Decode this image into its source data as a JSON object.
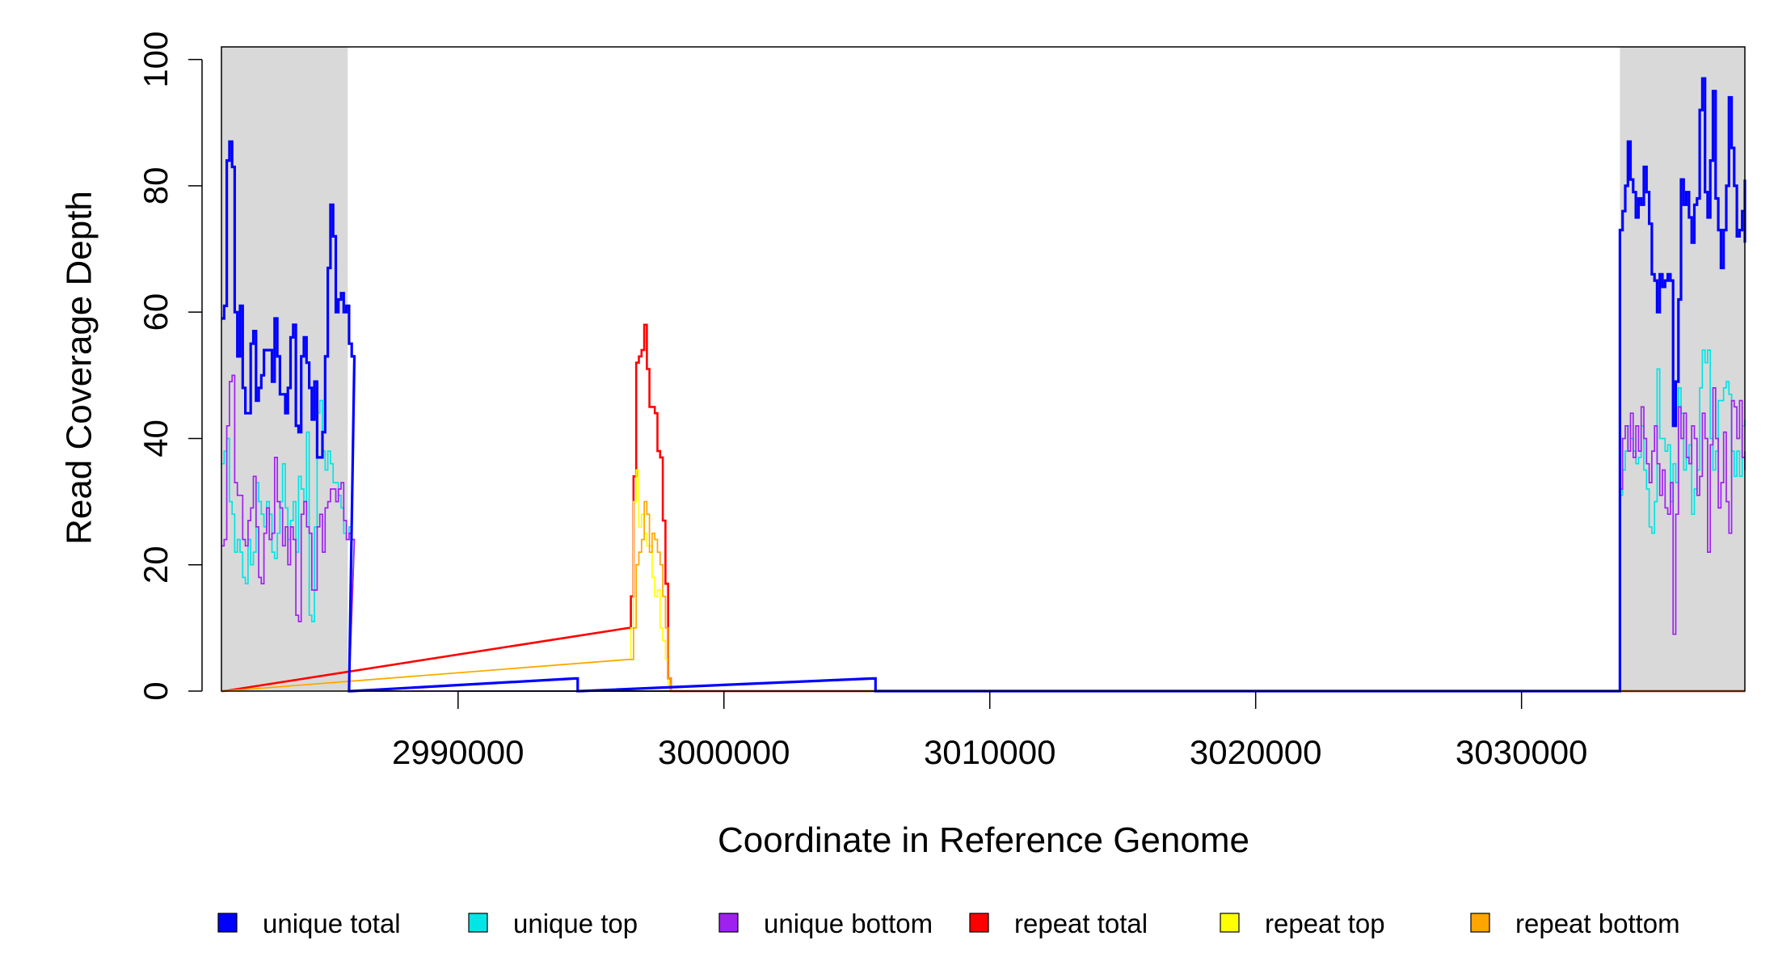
{
  "chart_data": {
    "type": "line",
    "xlabel": "Coordinate in Reference Genome",
    "ylabel": "Read Coverage Depth",
    "xlim": [
      2981100,
      3038400
    ],
    "ylim": [
      0,
      102
    ],
    "x_ticks": [
      2990000,
      3000000,
      3010000,
      3020000,
      3030000
    ],
    "x_tick_labels": [
      "2990000",
      "3000000",
      "3010000",
      "3020000",
      "3030000"
    ],
    "y_ticks": [
      0,
      20,
      40,
      60,
      80,
      100
    ],
    "y_tick_labels": [
      "0",
      "20",
      "40",
      "60",
      "80",
      "100"
    ],
    "grid": false,
    "legend_position": "bottom",
    "shaded_regions": [
      {
        "x_start": 2981100,
        "x_end": 2985850,
        "color": "#d9d9d9"
      },
      {
        "x_start": 3033700,
        "x_end": 3038400,
        "color": "#d9d9d9"
      }
    ],
    "series": [
      {
        "name": "unique total",
        "color": "#0000ff",
        "step": 100,
        "segments": [
          {
            "x0": 2981100,
            "values": [
              59,
              61,
              84,
              87,
              83,
              60,
              53,
              61,
              48,
              44,
              44,
              55,
              57,
              46,
              48,
              50,
              54,
              54,
              54,
              49,
              59,
              53,
              47,
              47,
              44,
              48,
              56,
              58,
              42,
              41,
              53,
              56,
              52,
              48,
              43,
              49,
              37,
              37,
              41,
              53,
              67,
              77,
              72,
              60,
              62,
              63,
              60,
              61,
              55,
              53
            ]
          },
          {
            "x0": 2985900,
            "values": [
              0
            ]
          },
          {
            "x0": 2994400,
            "values": [
              2
            ]
          },
          {
            "x0": 2994500,
            "values": [
              0
            ]
          },
          {
            "x0": 3005600,
            "values": [
              2
            ]
          },
          {
            "x0": 3005700,
            "values": [
              0
            ]
          },
          {
            "x0": 3033500,
            "values": [
              0,
              0,
              73,
              76,
              80,
              87,
              81,
              79,
              75,
              78,
              77,
              83,
              79,
              74,
              66,
              65,
              60,
              66,
              64,
              65,
              66,
              65,
              42,
              49,
              62,
              81,
              77,
              79,
              75,
              71,
              77,
              78,
              92,
              97,
              79,
              75,
              84,
              95,
              78,
              73,
              67,
              73,
              80,
              94,
              86,
              80,
              72,
              73,
              76,
              81,
              71
            ]
          }
        ]
      },
      {
        "name": "unique top",
        "color": "#00e5e5",
        "step": 100,
        "segments": [
          {
            "x0": 2981100,
            "values": [
              36,
              38,
              40,
              30,
              28,
              22,
              24,
              22,
              18,
              17,
              24,
              20,
              22,
              33,
              30,
              28,
              26,
              30,
              28,
              22,
              21,
              25,
              30,
              36,
              29,
              24,
              27,
              30,
              22,
              34,
              32,
              30,
              41,
              12,
              11,
              26,
              44,
              46,
              38,
              35,
              38,
              36,
              33,
              33,
              31,
              29,
              25,
              24,
              26,
              24
            ]
          },
          {
            "x0": 2985900,
            "values": [
              0
            ]
          },
          {
            "x0": 3033500,
            "values": [
              0,
              0,
              31,
              35,
              38,
              42,
              40,
              38,
              36,
              37,
              42,
              35,
              32,
              26,
              25,
              30,
              51,
              40,
              40,
              38,
              39,
              30,
              36,
              33,
              48,
              44,
              35,
              37,
              39,
              28,
              32,
              35,
              48,
              54,
              52,
              54,
              40,
              35,
              38,
              46,
              46,
              48,
              49,
              47,
              38,
              34,
              38,
              34,
              42,
              42,
              43
            ]
          }
        ]
      },
      {
        "name": "unique bottom",
        "color": "#a020f0",
        "step": 100,
        "segments": [
          {
            "x0": 2981100,
            "values": [
              23,
              24,
              42,
              49,
              50,
              33,
              31,
              31,
              24,
              23,
              27,
              29,
              34,
              26,
              18,
              17,
              25,
              29,
              24,
              25,
              37,
              30,
              29,
              23,
              26,
              20,
              26,
              24,
              12,
              11,
              28,
              30,
              26,
              25,
              16,
              16,
              26,
              28,
              22,
              29,
              30,
              32,
              32,
              30,
              32,
              33,
              27,
              24,
              25,
              24
            ]
          },
          {
            "x0": 2985900,
            "values": [
              0
            ]
          },
          {
            "x0": 3033500,
            "values": [
              0,
              0,
              32,
              40,
              42,
              38,
              44,
              37,
              42,
              38,
              45,
              40,
              36,
              33,
              38,
              42,
              36,
              31,
              35,
              29,
              28,
              33,
              9,
              28,
              45,
              40,
              44,
              37,
              36,
              42,
              40,
              31,
              34,
              44,
              40,
              22,
              39,
              48,
              40,
              29,
              33,
              41,
              30,
              25,
              46,
              45,
              40,
              46,
              37,
              38,
              35
            ]
          }
        ]
      },
      {
        "name": "repeat total",
        "color": "#ff0000",
        "step": 100,
        "segments": [
          {
            "x0": 2981100,
            "values": [
              0
            ]
          },
          {
            "x0": 2996400,
            "values": [
              10,
              15,
              34,
              52,
              53,
              54,
              58,
              51,
              45,
              45,
              44,
              38,
              37,
              27,
              17,
              2,
              0
            ]
          },
          {
            "x0": 2998100,
            "values": [
              0
            ]
          }
        ]
      },
      {
        "name": "repeat top",
        "color": "#ffff00",
        "step": 100,
        "segments": [
          {
            "x0": 2981100,
            "values": [
              0
            ]
          },
          {
            "x0": 2996400,
            "values": [
              5,
              10,
              30,
              35,
              26,
              28,
              25,
              23,
              23,
              18,
              15,
              16,
              10,
              8,
              5,
              1,
              0
            ]
          },
          {
            "x0": 2998100,
            "values": [
              0
            ]
          }
        ]
      },
      {
        "name": "repeat bottom",
        "color": "#ffa500",
        "step": 100,
        "segments": [
          {
            "x0": 2981100,
            "values": [
              0
            ]
          },
          {
            "x0": 2996400,
            "values": [
              5,
              5,
              10,
              20,
              22,
              24,
              30,
              28,
              22,
              25,
              24,
              22,
              20,
              15,
              10,
              2,
              0
            ]
          },
          {
            "x0": 2998100,
            "values": [
              0
            ]
          }
        ]
      }
    ]
  }
}
